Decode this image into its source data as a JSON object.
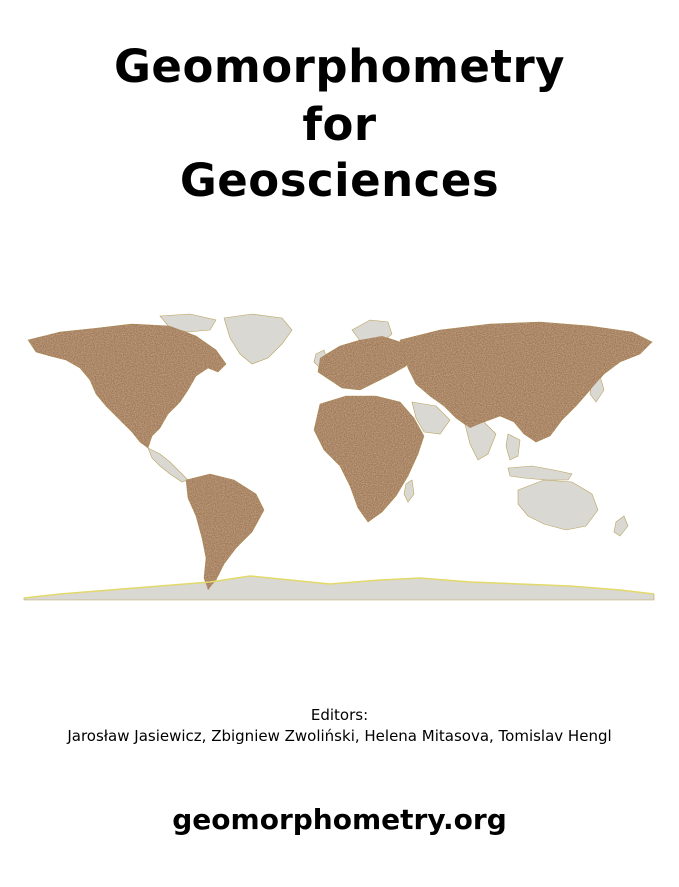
{
  "cover": {
    "title_lines": [
      "Geomorphometry",
      "for",
      "Geosciences"
    ],
    "editors_label": "Editors:",
    "editors_names": "Jarosław Jasiewicz, Zbigniew Zwoliński, Helena Mitasova, Tomislav Hengl",
    "website": "geomorphometry.org"
  },
  "map": {
    "icon": "world-map-icon",
    "colors": {
      "land_base": "#d9d8d3",
      "terrain_brown": "#8a5a3c",
      "terrain_rust": "#b06a3a",
      "terrain_yellow": "#d9c255",
      "terrain_green": "#7c8a4a",
      "ice": "#d6d6d2",
      "ice_edge": "#e2d96a"
    }
  }
}
